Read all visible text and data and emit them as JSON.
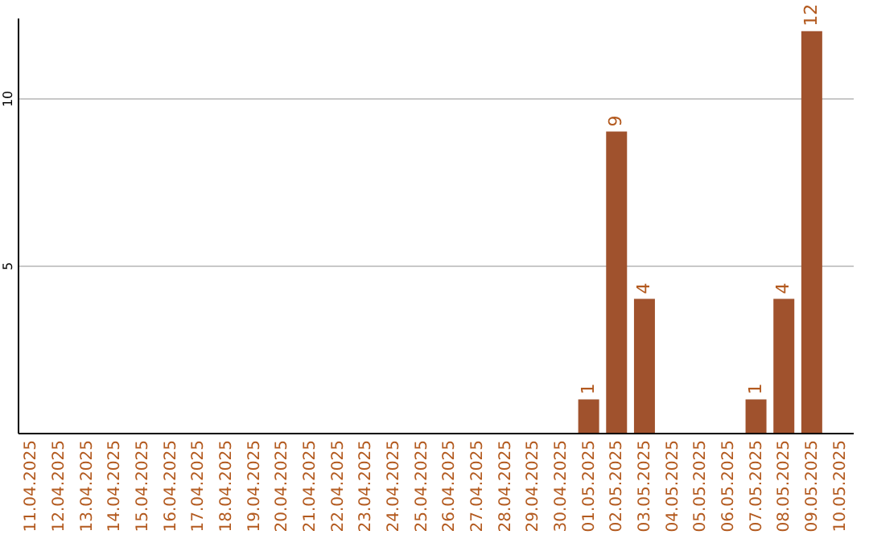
{
  "chart_data": {
    "type": "bar",
    "categories": [
      "11.04.2025",
      "12.04.2025",
      "13.04.2025",
      "14.04.2025",
      "15.04.2025",
      "16.04.2025",
      "17.04.2025",
      "18.04.2025",
      "19.04.2025",
      "20.04.2025",
      "21.04.2025",
      "22.04.2025",
      "23.04.2025",
      "24.04.2025",
      "25.04.2025",
      "26.04.2025",
      "27.04.2025",
      "28.04.2025",
      "29.04.2025",
      "30.04.2025",
      "01.05.2025",
      "02.05.2025",
      "03.05.2025",
      "04.05.2025",
      "05.05.2025",
      "06.05.2025",
      "07.05.2025",
      "08.05.2025",
      "09.05.2025",
      "10.05.2025"
    ],
    "values": [
      0,
      0,
      0,
      0,
      0,
      0,
      0,
      0,
      0,
      0,
      0,
      0,
      0,
      0,
      0,
      0,
      0,
      0,
      0,
      0,
      1,
      9,
      4,
      0,
      0,
      0,
      1,
      4,
      12,
      0
    ],
    "value_labels": [
      null,
      null,
      null,
      null,
      null,
      null,
      null,
      null,
      null,
      null,
      null,
      null,
      null,
      null,
      null,
      null,
      null,
      null,
      null,
      null,
      "1",
      "9",
      "4",
      null,
      null,
      null,
      "1",
      "4",
      "12",
      null
    ],
    "color": "#a0522d",
    "ylim": [
      0,
      12.4
    ],
    "yticks": [
      5,
      10
    ],
    "grid": "y"
  }
}
